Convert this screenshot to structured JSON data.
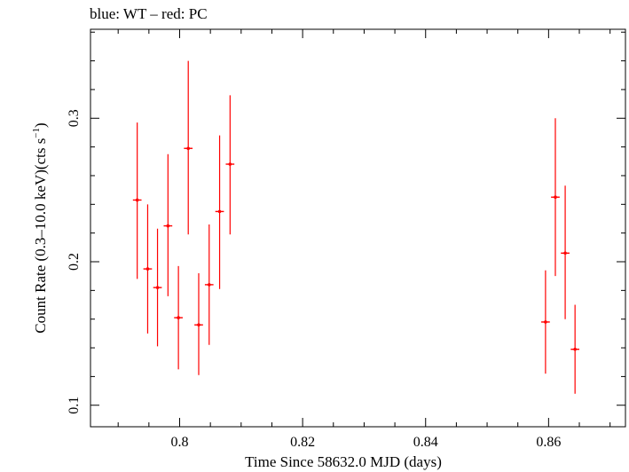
{
  "chart_data": {
    "type": "scatter",
    "title": "blue: WT – red: PC",
    "xlabel": "Time Since 58632.0 MJD (days)",
    "ylabel_main": "Count Rate (0.3–10.0 keV)(cts s",
    "ylabel_sup": "−1",
    "ylabel_close": ")",
    "xlim": [
      0.7855,
      0.8725
    ],
    "ylim": [
      0.085,
      0.362
    ],
    "xticks": [
      0.8,
      0.82,
      0.84,
      0.86
    ],
    "xtick_labels": [
      "0.8",
      "0.82",
      "0.84",
      "0.86"
    ],
    "yticks": [
      0.1,
      0.2,
      0.3
    ],
    "ytick_labels": [
      "0.1",
      "0.2",
      "0.3"
    ],
    "grid": false,
    "series": [
      {
        "color": "#ff0000",
        "points": [
          {
            "x": 0.7931,
            "y": 0.243,
            "xerr": 0.0007,
            "yerr_lo": 0.055,
            "yerr_hi": 0.054
          },
          {
            "x": 0.7948,
            "y": 0.195,
            "xerr": 0.0007,
            "yerr_lo": 0.045,
            "yerr_hi": 0.045
          },
          {
            "x": 0.7964,
            "y": 0.182,
            "xerr": 0.0007,
            "yerr_lo": 0.041,
            "yerr_hi": 0.041
          },
          {
            "x": 0.7981,
            "y": 0.225,
            "xerr": 0.0007,
            "yerr_lo": 0.049,
            "yerr_hi": 0.05
          },
          {
            "x": 0.7998,
            "y": 0.161,
            "xerr": 0.0007,
            "yerr_lo": 0.036,
            "yerr_hi": 0.036
          },
          {
            "x": 0.8014,
            "y": 0.279,
            "xerr": 0.0007,
            "yerr_lo": 0.06,
            "yerr_hi": 0.061
          },
          {
            "x": 0.8031,
            "y": 0.156,
            "xerr": 0.0007,
            "yerr_lo": 0.035,
            "yerr_hi": 0.036
          },
          {
            "x": 0.8048,
            "y": 0.184,
            "xerr": 0.0007,
            "yerr_lo": 0.042,
            "yerr_hi": 0.042
          },
          {
            "x": 0.8065,
            "y": 0.235,
            "xerr": 0.0007,
            "yerr_lo": 0.054,
            "yerr_hi": 0.053
          },
          {
            "x": 0.8082,
            "y": 0.268,
            "xerr": 0.0007,
            "yerr_lo": 0.049,
            "yerr_hi": 0.048
          },
          {
            "x": 0.8595,
            "y": 0.158,
            "xerr": 0.0007,
            "yerr_lo": 0.036,
            "yerr_hi": 0.036
          },
          {
            "x": 0.8611,
            "y": 0.245,
            "xerr": 0.0007,
            "yerr_lo": 0.055,
            "yerr_hi": 0.055
          },
          {
            "x": 0.8627,
            "y": 0.206,
            "xerr": 0.0007,
            "yerr_lo": 0.046,
            "yerr_hi": 0.047
          },
          {
            "x": 0.8643,
            "y": 0.139,
            "xerr": 0.0007,
            "yerr_lo": 0.031,
            "yerr_hi": 0.031
          }
        ]
      }
    ]
  }
}
